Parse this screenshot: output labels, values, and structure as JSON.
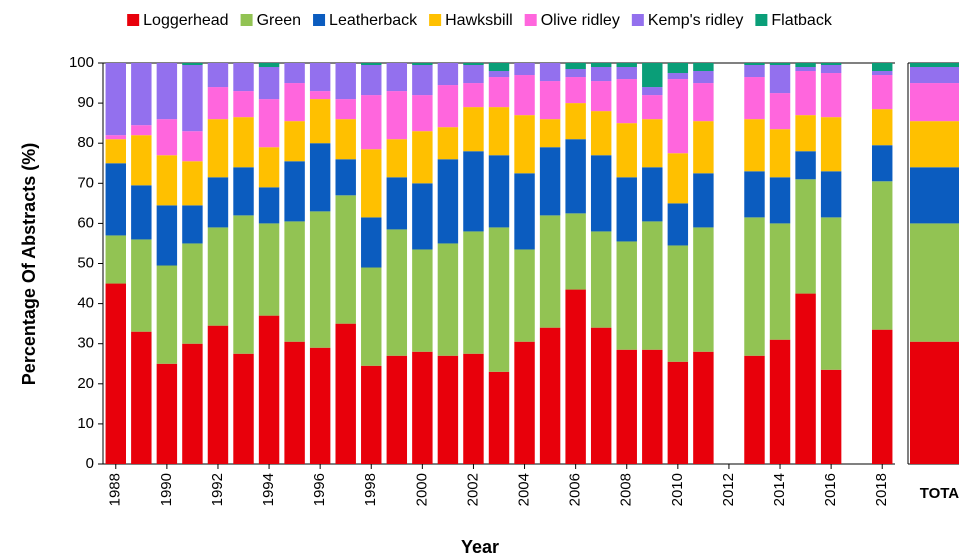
{
  "chart_data": [
    {
      "type": "stacked_bar",
      "x_label": "Year",
      "y_label": "Percentage Of Abstracts (%)",
      "categories": [
        "1988",
        null,
        "1990",
        null,
        "1992",
        null,
        "1994",
        null,
        "1996",
        null,
        "1998",
        null,
        "2000",
        null,
        "2002",
        null,
        "2004",
        null,
        "2006",
        null,
        "2008",
        null,
        "2010",
        null,
        "2012",
        null,
        "2014",
        null,
        "2016",
        null,
        "2018"
      ],
      "ylim": [
        0,
        100
      ],
      "yticks": [
        0,
        10,
        20,
        30,
        40,
        50,
        60,
        70,
        80,
        90,
        100
      ],
      "legend": "top",
      "series": [
        {
          "name": "Loggerhead",
          "color": "#e8000b",
          "values": [
            45,
            33,
            25,
            30,
            34.5,
            27.5,
            37,
            30.5,
            29,
            35,
            24.5,
            27,
            28,
            27,
            27.5,
            23,
            30.5,
            34,
            43.5,
            34,
            28.5,
            28.5,
            25.5,
            28,
            null,
            27,
            31,
            42.5,
            23.5,
            null,
            33.5
          ]
        },
        {
          "name": "Green",
          "color": "#92c353",
          "values": [
            12,
            23,
            24.5,
            25,
            24.5,
            34.5,
            23,
            30,
            34,
            32,
            24.5,
            31.5,
            25.5,
            28,
            30.5,
            36,
            23,
            28,
            19,
            24,
            27,
            32,
            29,
            31,
            null,
            34.5,
            29,
            28.5,
            38,
            null,
            37
          ]
        },
        {
          "name": "Leatherback",
          "color": "#0b5cbf",
          "values": [
            18,
            13.5,
            15,
            9.5,
            12.5,
            12,
            9,
            15,
            17,
            9,
            12.5,
            13,
            16.5,
            21,
            20,
            18,
            19,
            17,
            18.5,
            19,
            16,
            13.5,
            10.5,
            13.5,
            null,
            11.5,
            11.5,
            7,
            11.5,
            null,
            9
          ]
        },
        {
          "name": "Hawksbill",
          "color": "#ffc000",
          "values": [
            6,
            12.5,
            12.5,
            11,
            14.5,
            12.5,
            10,
            10,
            11,
            10,
            17,
            9.5,
            13,
            8,
            11,
            12,
            14.5,
            7,
            9,
            11,
            13.5,
            12,
            12.5,
            13,
            null,
            13,
            12,
            9,
            13.5,
            null,
            9
          ]
        },
        {
          "name": "Olive ridley",
          "color": "#ff66dd",
          "values": [
            1,
            2.5,
            9,
            7.5,
            8,
            6.5,
            12,
            9.5,
            2,
            5,
            13.5,
            12,
            9,
            10.5,
            6,
            7.5,
            10,
            9.5,
            6.5,
            7.5,
            11,
            6,
            18.5,
            9.5,
            null,
            10.5,
            9,
            11,
            11,
            null,
            8.5
          ]
        },
        {
          "name": "Kemp's ridley",
          "color": "#9370ee",
          "values": [
            18,
            15.5,
            14,
            16.5,
            6,
            7,
            8,
            5,
            7,
            9,
            7.5,
            7,
            7.5,
            5.5,
            4.5,
            1.5,
            3,
            4.5,
            2,
            3.5,
            3,
            2,
            1.5,
            3,
            null,
            3,
            7,
            1,
            2,
            null,
            1
          ]
        },
        {
          "name": "Flatback",
          "color": "#0a9e78",
          "values": [
            0,
            0,
            0,
            0.5,
            0,
            0,
            1,
            0,
            0,
            0,
            0.5,
            0,
            0.5,
            0,
            0.5,
            2,
            0,
            0,
            1.5,
            1,
            1,
            6,
            2.5,
            2,
            null,
            0.5,
            0.5,
            1,
            0.5,
            null,
            2
          ]
        }
      ]
    },
    {
      "type": "stacked_bar",
      "categories": [
        "TOTAL"
      ],
      "ylim": [
        0,
        100
      ],
      "series": [
        {
          "color": "#e8000b",
          "values": [
            30.5
          ]
        },
        {
          "color": "#92c353",
          "values": [
            29.5
          ]
        },
        {
          "color": "#0b5cbf",
          "values": [
            14
          ]
        },
        {
          "color": "#ffc000",
          "values": [
            11.5
          ]
        },
        {
          "color": "#ff66dd",
          "values": [
            9.5
          ]
        },
        {
          "color": "#9370ee",
          "values": [
            4
          ]
        },
        {
          "color": "#0a9e78",
          "values": [
            1
          ]
        }
      ]
    }
  ]
}
